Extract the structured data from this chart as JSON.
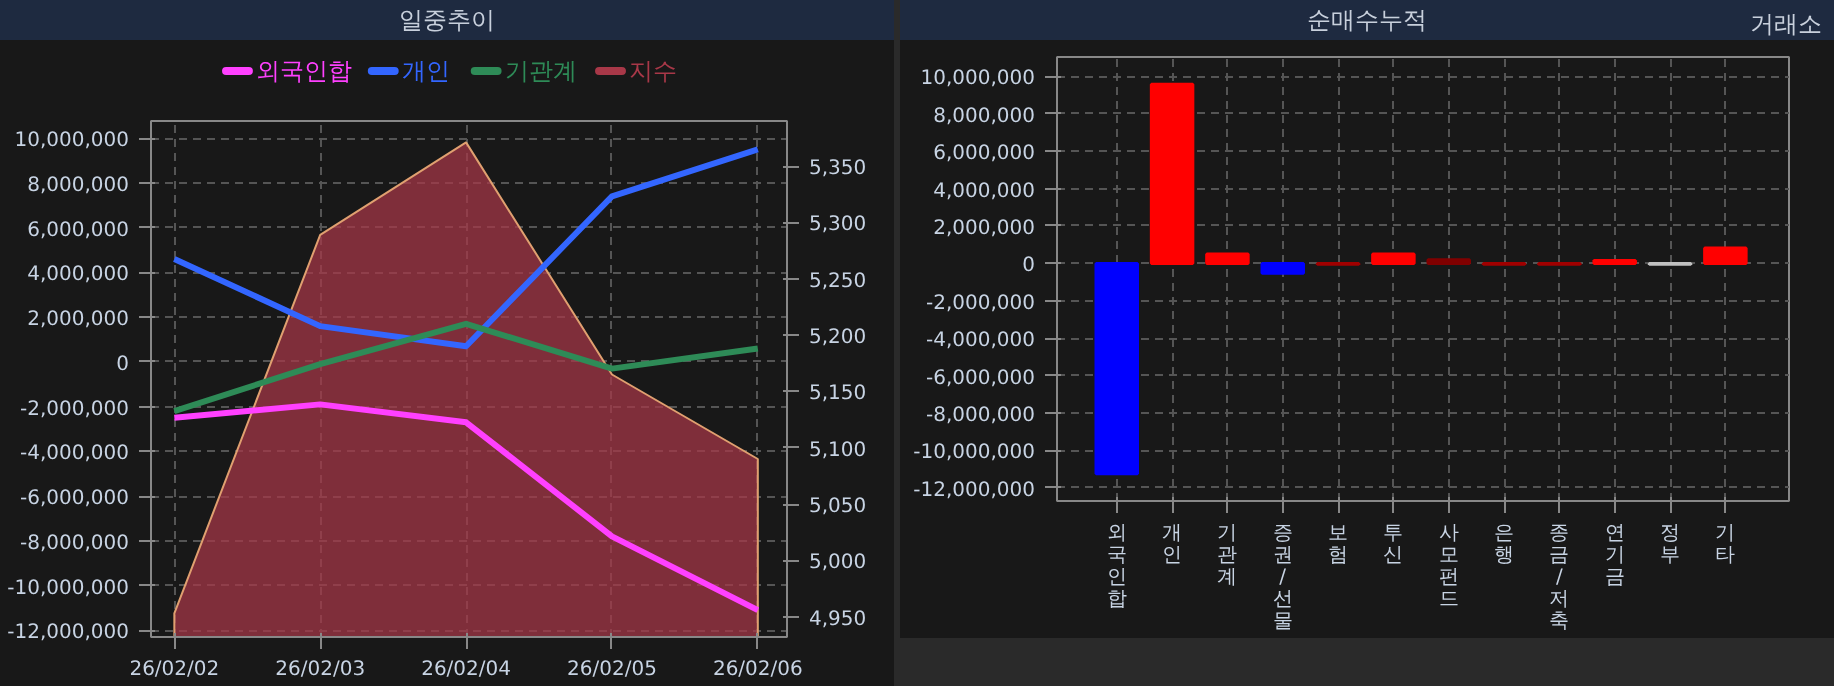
{
  "chart_data": [
    {
      "type": "line",
      "title": "일중추이",
      "categories": [
        "26/02/02",
        "26/02/03",
        "26/02/04",
        "26/02/05",
        "26/02/06"
      ],
      "series": [
        {
          "name": "외국인합",
          "color": "#ff40ff",
          "values": [
            -2500000,
            -1900000,
            -2700000,
            -7800000,
            -11100000
          ]
        },
        {
          "name": "개인",
          "color": "#3366ff",
          "values": [
            4600000,
            1600000,
            700000,
            7400000,
            9500000
          ]
        },
        {
          "name": "기관계",
          "color": "#2e8b57",
          "values": [
            -2200000,
            -100000,
            1700000,
            -300000,
            600000
          ]
        },
        {
          "name": "지수",
          "type": "area",
          "axis": "y2",
          "color": "#a83848",
          "values": [
            4953,
            5289,
            5371,
            5165,
            5090
          ]
        }
      ],
      "ylim": [
        -12300000,
        10770000
      ],
      "yticks": [
        {
          "value": -12000000,
          "label": "-12,000,000"
        },
        {
          "value": -10000000,
          "label": "-10,000,000"
        },
        {
          "value": -8000000,
          "label": "-8,000,000"
        },
        {
          "value": -6000000,
          "label": "-6,000,000"
        },
        {
          "value": -4000000,
          "label": "-4,000,000"
        },
        {
          "value": -2000000,
          "label": "-2,000,000"
        },
        0,
        {
          "value": 2000000,
          "label": "2,000,000"
        },
        {
          "value": 4000000,
          "label": "4,000,000"
        },
        {
          "value": 6000000,
          "label": "6,000,000"
        },
        {
          "value": 8000000,
          "label": "8,000,000"
        },
        {
          "value": 10000000,
          "label": "10,000,000"
        }
      ],
      "y2lim": [
        4932,
        5390
      ],
      "y2ticks": [
        {
          "value": 4950,
          "label": "4,950"
        },
        {
          "value": 5000,
          "label": "5,000"
        },
        {
          "value": 5050,
          "label": "5,050"
        },
        {
          "value": 5100,
          "label": "5,100"
        },
        {
          "value": 5150,
          "label": "5,150"
        },
        {
          "value": 5200,
          "label": "5,200"
        },
        {
          "value": 5250,
          "label": "5,250"
        },
        {
          "value": 5300,
          "label": "5,300"
        },
        {
          "value": 5350,
          "label": "5,350"
        }
      ],
      "grid": true,
      "legend": "top"
    },
    {
      "type": "bar",
      "title": "순매수누적",
      "annotations": [
        "거래소"
      ],
      "categories": [
        "외국인합",
        "개인",
        "기관계",
        "증권/선물",
        "보험",
        "투신",
        "사모펀드",
        "은행",
        "종금/저축",
        "연기금",
        "정부",
        "기타"
      ],
      "values": [
        -11240000,
        9570000,
        500000,
        -530000,
        -50000,
        500000,
        200000,
        -50000,
        -50000,
        150000,
        -50000,
        820000
      ],
      "colors": [
        "#0000ff",
        "#ff0000",
        "#ff0000",
        "#0000ff",
        "#a00000",
        "#ff0000",
        "#800000",
        "#a00000",
        "#a00000",
        "#ff0000",
        "#c0c0c0",
        "#ff0000"
      ],
      "ylim": [
        -12700000,
        11030000
      ],
      "yticks": [
        {
          "value": -12000000,
          "label": "-12,000,000"
        },
        {
          "value": -10000000,
          "label": "-10,000,000"
        },
        {
          "value": -8000000,
          "label": "-8,000,000"
        },
        {
          "value": -6000000,
          "label": "-6,000,000"
        },
        {
          "value": -4000000,
          "label": "-4,000,000"
        },
        {
          "value": -2000000,
          "label": "-2,000,000"
        },
        0,
        {
          "value": 2000000,
          "label": "2,000,000"
        },
        {
          "value": 4000000,
          "label": "4,000,000"
        },
        {
          "value": 6000000,
          "label": "6,000,000"
        },
        {
          "value": 8000000,
          "label": "8,000,000"
        },
        {
          "value": 10000000,
          "label": "10,000,000"
        }
      ],
      "grid": true
    }
  ]
}
